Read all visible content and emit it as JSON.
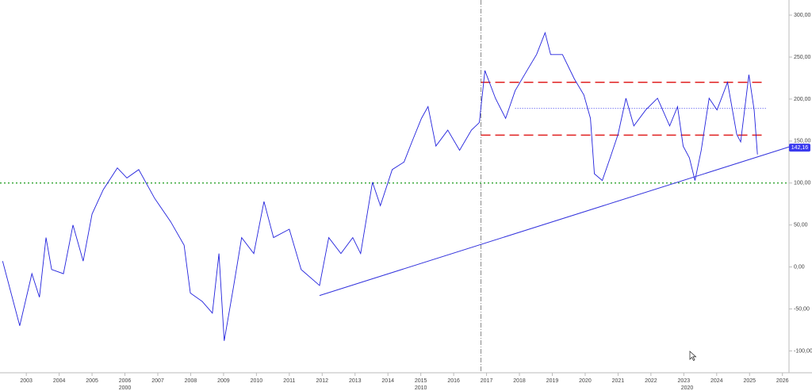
{
  "chart_data": {
    "type": "line",
    "x": [
      2002.28,
      2002.8,
      2003.17,
      2003.4,
      2003.6,
      2003.77,
      2004.13,
      2004.42,
      2004.73,
      2005,
      2005.34,
      2005.77,
      2006.06,
      2006.42,
      2006.9,
      2007.39,
      2007.8,
      2007.99,
      2008.35,
      2008.66,
      2008.86,
      2009.02,
      2009.31,
      2009.55,
      2009.92,
      2010.23,
      2010.52,
      2011,
      2011.36,
      2011.92,
      2012.2,
      2012.57,
      2012.93,
      2013.17,
      2013.53,
      2013.77,
      2014.13,
      2014.49,
      2014.73,
      2015.02,
      2015.22,
      2015.46,
      2015.82,
      2016.18,
      2016.54,
      2016.78,
      2016.95,
      2017.27,
      2017.58,
      2017.87,
      2018.23,
      2018.52,
      2018.78,
      2018.95,
      2019.31,
      2019.67,
      2019.96,
      2020.16,
      2020.28,
      2020.52,
      2020.76,
      2021,
      2021.24,
      2021.48,
      2021.84,
      2022.2,
      2022.57,
      2022.81,
      2022.98,
      2023.17,
      2023.34,
      2023.53,
      2023.77,
      2024.01,
      2024.33,
      2024.61,
      2024.73,
      2024.98,
      2025.14,
      2025.24
    ],
    "series": [
      {
        "color": "#2222dd",
        "values": [
          7,
          -70,
          -8,
          -36,
          35,
          -3,
          -8,
          50,
          7,
          63,
          92,
          118,
          106,
          116,
          82,
          54,
          26,
          -31,
          -41,
          -55,
          16,
          -88,
          -22,
          35,
          16,
          78,
          35,
          45,
          -3,
          -22,
          35,
          16,
          35,
          16,
          101,
          73,
          116,
          125,
          149,
          177,
          191,
          144,
          163,
          139,
          163,
          172,
          234,
          201,
          177,
          210,
          234,
          253,
          279,
          253,
          253,
          224,
          205,
          177,
          111,
          103,
          130,
          158,
          201,
          168,
          187,
          201,
          168,
          191,
          144,
          130,
          103,
          139,
          201,
          187,
          220,
          158,
          149,
          229,
          187,
          134
        ]
      }
    ],
    "xlim": [
      2002.2,
      2026.2
    ],
    "ylim": [
      -126,
      318
    ],
    "xticks": [
      2003,
      2004,
      2005,
      2006,
      2007,
      2008,
      2009,
      2010,
      2011,
      2012,
      2013,
      2014,
      2015,
      2016,
      2017,
      2018,
      2019,
      2020,
      2021,
      2022,
      2023,
      2024,
      2025,
      2026
    ],
    "decade_labels": [
      {
        "value": 2006,
        "label": "2000"
      },
      {
        "value": 2015,
        "label": "2010"
      },
      {
        "value": 2023.1,
        "label": "2020"
      }
    ],
    "yticks": [
      {
        "value": 300,
        "label": "300,00"
      },
      {
        "value": 250,
        "label": "250,00"
      },
      {
        "value": 200,
        "label": "200,00"
      },
      {
        "value": 150,
        "label": "150,00"
      },
      {
        "value": 100,
        "label": "100,00"
      },
      {
        "value": 50,
        "label": "50,00"
      },
      {
        "value": 0,
        "label": "0,00"
      },
      {
        "value": -50,
        "label": "-50,00"
      },
      {
        "value": -100,
        "label": "-100,00"
      }
    ],
    "hlines": [
      {
        "value": 100,
        "from": 2002.2,
        "to": 2026.2,
        "color": "#1a9a1a",
        "dash": "2 3"
      },
      {
        "value": 220,
        "from": 2016.83,
        "to": 2025.5,
        "color": "#e02020",
        "dash": "12 6"
      },
      {
        "value": 157,
        "from": 2016.83,
        "to": 2025.5,
        "color": "#e02020",
        "dash": "12 6"
      },
      {
        "value": 189,
        "from": 2017.87,
        "to": 2025.5,
        "color": "#5555ee",
        "dash": "1 2"
      }
    ],
    "vline": {
      "value": 2016.83,
      "color": "#888888"
    },
    "trendline": {
      "x": [
        2011.92,
        2026.2
      ],
      "y": [
        -34,
        143
      ],
      "color": "#3333dd"
    },
    "price_label": {
      "value": 142.16,
      "label": "142,16",
      "color": "#3a3aee"
    }
  }
}
